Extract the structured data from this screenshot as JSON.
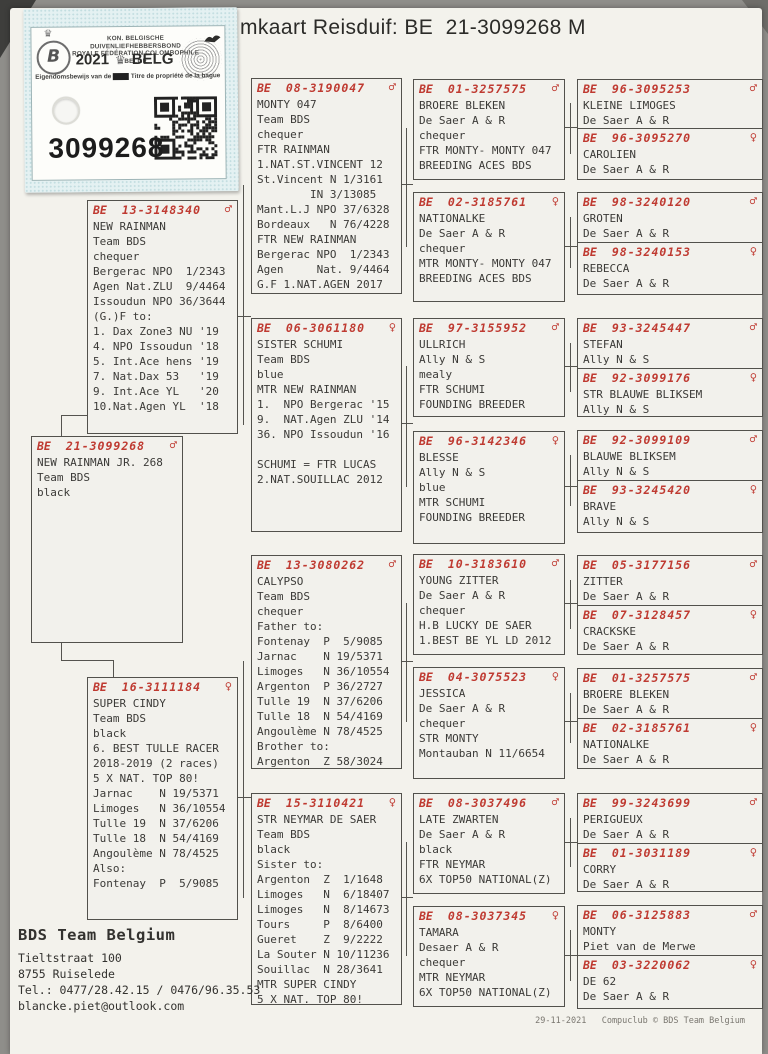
{
  "title": "mkaart Reisduif: BE  21-3099268 M",
  "sticker": {
    "federation_line1": "KON. BELGISCHE DUIVENLIEFHEBBERSBOND",
    "federation_line2": "ROYALE FÉDÉRATION COLOMBOPHILE BELGE",
    "logo_letter": "B",
    "year": "2021",
    "country": "BELG",
    "ownership_left": "Eigendomsbewijs van de",
    "ownership_struck": "ring",
    "ownership_right": "Titre de propriété de la bague",
    "ring_number": "3099268"
  },
  "colors": {
    "accent_red": "#bf3a31",
    "paper": "#f3f2ec",
    "sticker_blue": "#e4f1f2"
  },
  "pedigree": {
    "boxes": [
      {
        "ring_prefix": "BE",
        "ring": "13-3148340",
        "sex": "♂",
        "lines": [
          "NEW RAINMAN",
          "Team BDS",
          "chequer",
          "Bergerac NPO  1/2343",
          "Agen Nat.ZLU  9/4464",
          "Issoudun NPO 36/3644",
          "(G.)F to:",
          "1. Dax Zone3 NU '19",
          "4. NPO Issoudun '18",
          "5. Int.Ace hens '19",
          "7. Nat.Dax 53   '19",
          "9. Int.Ace YL   '20",
          "10.Nat.Agen YL  '18"
        ]
      },
      {
        "ring_prefix": "BE",
        "ring": "21-3099268",
        "sex": "♂",
        "lines": [
          "NEW RAINMAN JR. 268",
          "Team BDS",
          "black"
        ]
      },
      {
        "ring_prefix": "BE",
        "ring": "16-3111184",
        "sex": "♀",
        "lines": [
          "SUPER CINDY",
          "Team BDS",
          "black",
          "6. BEST TULLE RACER",
          "2018-2019 (2 races)",
          "5 X NAT. TOP 80!",
          "Jarnac    N 19/5371",
          "Limoges   N 36/10554",
          "Tulle 19  N 37/6206",
          "Tulle 18  N 54/4169",
          "Angoulème N 78/4525",
          "Also:",
          "Fontenay  P  5/9085"
        ]
      },
      {
        "ring_prefix": "BE",
        "ring": "08-3190047",
        "sex": "♂",
        "lines": [
          "MONTY 047",
          "Team BDS",
          "chequer",
          "FTR RAINMAN",
          "1.NAT.ST.VINCENT 12",
          "St.Vincent N 1/3161",
          "        IN 3/13085",
          "Mant.L.J NPO 37/6328",
          "Bordeaux   N 76/4228",
          "FTR NEW RAINMAN",
          "Bergerac NPO  1/2343",
          "Agen     Nat. 9/4464",
          "G.F 1.NAT.AGEN 2017"
        ]
      },
      {
        "ring_prefix": "BE",
        "ring": "06-3061180",
        "sex": "♀",
        "lines": [
          "SISTER SCHUMI",
          "Team BDS",
          "blue",
          "MTR NEW RAINMAN",
          "1.  NPO Bergerac '15",
          "9.  NAT.Agen ZLU '14",
          "36. NPO Issoudun '16",
          "",
          "SCHUMI = FTR LUCAS",
          "2.NAT.SOUILLAC 2012"
        ]
      },
      {
        "ring_prefix": "BE",
        "ring": "13-3080262",
        "sex": "♂",
        "lines": [
          "CALYPSO",
          "Team BDS",
          "chequer",
          "Father to:",
          "Fontenay  P  5/9085",
          "Jarnac    N 19/5371",
          "Limoges   N 36/10554",
          "Argenton  P 36/2727",
          "Tulle 19  N 37/6206",
          "Tulle 18  N 54/4169",
          "Angoulème N 78/4525",
          "Brother to:",
          "Argenton  Z 58/3024"
        ]
      },
      {
        "ring_prefix": "BE",
        "ring": "15-3110421",
        "sex": "♀",
        "lines": [
          "STR NEYMAR DE SAER",
          "Team BDS",
          "black",
          "Sister to:",
          "Argenton  Z  1/1648",
          "Limoges   N  6/18407",
          "Limoges   N  8/14673",
          "Tours     P  8/6400",
          "Gueret    Z  9/2222",
          "La Souter N 10/11236",
          "Souillac  N 28/3641",
          "MTR SUPER CINDY",
          "5 X NAT. TOP 80!"
        ]
      },
      {
        "ring_prefix": "BE",
        "ring": "01-3257575",
        "sex": "♂",
        "lines": [
          "BROERE BLEKEN",
          "De Saer A & R",
          "chequer",
          "FTR MONTY- MONTY 047",
          "BREEDING ACES BDS"
        ]
      },
      {
        "ring_prefix": "BE",
        "ring": "02-3185761",
        "sex": "♀",
        "lines": [
          "NATIONALKE",
          "De Saer A & R",
          "chequer",
          "MTR MONTY- MONTY 047",
          "BREEDING ACES BDS"
        ]
      },
      {
        "ring_prefix": "BE",
        "ring": "97-3155952",
        "sex": "♂",
        "lines": [
          "ULLRICH",
          "Ally N & S",
          "mealy",
          "FTR SCHUMI",
          "FOUNDING BREEDER"
        ]
      },
      {
        "ring_prefix": "BE",
        "ring": "96-3142346",
        "sex": "♀",
        "lines": [
          "BLESSE",
          "Ally N & S",
          "blue",
          "MTR SCHUMI",
          "FOUNDING BREEDER"
        ]
      },
      {
        "ring_prefix": "BE",
        "ring": "10-3183610",
        "sex": "♂",
        "lines": [
          "YOUNG ZITTER",
          "De Saer A & R",
          "chequer",
          "H.B LUCKY DE SAER",
          "1.BEST BE YL LD 2012"
        ]
      },
      {
        "ring_prefix": "BE",
        "ring": "04-3075523",
        "sex": "♀",
        "lines": [
          "JESSICA",
          "De Saer A & R",
          "chequer",
          "STR MONTY",
          "Montauban N 11/6654"
        ]
      },
      {
        "ring_prefix": "BE",
        "ring": "08-3037496",
        "sex": "♂",
        "lines": [
          "LATE ZWARTEN",
          "De Saer A & R",
          "black",
          "FTR NEYMAR",
          "6X TOP50 NATIONAL(Z)"
        ]
      },
      {
        "ring_prefix": "BE",
        "ring": "08-3037345",
        "sex": "♀",
        "lines": [
          "TAMARA",
          "Desaer A & R",
          "chequer",
          "MTR NEYMAR",
          "6X TOP50 NATIONAL(Z)"
        ]
      },
      {
        "ring_prefix": "BE",
        "ring": "96-3095253",
        "sex": "♂",
        "lines": [
          "KLEINE LIMOGES",
          "De Saer A & R"
        ]
      },
      {
        "ring_prefix": "BE",
        "ring": "96-3095270",
        "sex": "♀",
        "lines": [
          "CAROLIEN",
          "De Saer A & R"
        ]
      },
      {
        "ring_prefix": "BE",
        "ring": "98-3240120",
        "sex": "♂",
        "lines": [
          "GROTEN",
          "De Saer A & R"
        ]
      },
      {
        "ring_prefix": "BE",
        "ring": "98-3240153",
        "sex": "♀",
        "lines": [
          "REBECCA",
          "De Saer A & R"
        ]
      },
      {
        "ring_prefix": "BE",
        "ring": "93-3245447",
        "sex": "♂",
        "lines": [
          "STEFAN",
          "Ally N & S"
        ]
      },
      {
        "ring_prefix": "BE",
        "ring": "92-3099176",
        "sex": "♀",
        "lines": [
          "STR BLAUWE BLIKSEM",
          "Ally N & S"
        ]
      },
      {
        "ring_prefix": "BE",
        "ring": "92-3099109",
        "sex": "♂",
        "lines": [
          "BLAUWE BLIKSEM",
          "Ally N & S"
        ]
      },
      {
        "ring_prefix": "BE",
        "ring": "93-3245420",
        "sex": "♀",
        "lines": [
          "BRAVE",
          "Ally N & S"
        ]
      },
      {
        "ring_prefix": "BE",
        "ring": "05-3177156",
        "sex": "♂",
        "lines": [
          "ZITTER",
          "De Saer A & R"
        ]
      },
      {
        "ring_prefix": "BE",
        "ring": "07-3128457",
        "sex": "♀",
        "lines": [
          "CRACKSKE",
          "De Saer A & R"
        ]
      },
      {
        "ring_prefix": "BE",
        "ring": "01-3257575",
        "sex": "♂",
        "lines": [
          "BROERE BLEKEN",
          "De Saer A & R"
        ]
      },
      {
        "ring_prefix": "BE",
        "ring": "02-3185761",
        "sex": "♀",
        "lines": [
          "NATIONALKE",
          "De Saer A & R"
        ]
      },
      {
        "ring_prefix": "BE",
        "ring": "99-3243699",
        "sex": "♂",
        "lines": [
          "PERIGUEUX",
          "De Saer A & R"
        ]
      },
      {
        "ring_prefix": "BE",
        "ring": "01-3031189",
        "sex": "♀",
        "lines": [
          "CORRY",
          "De Saer A & R"
        ]
      },
      {
        "ring_prefix": "BE",
        "ring": "06-3125883",
        "sex": "♂",
        "lines": [
          "MONTY",
          "Piet van de Merwe"
        ]
      },
      {
        "ring_prefix": "BE",
        "ring": "03-3220062",
        "sex": "♀",
        "lines": [
          "DE 62",
          "De Saer A & R"
        ]
      }
    ]
  },
  "owner": {
    "name": "BDS Team Belgium",
    "lines": [
      "Tieltstraat 100",
      "8755  Ruiselede",
      "Tel.: 0477/28.42.15 / 0476/96.35.53",
      "blancke.piet@outlook.com"
    ]
  },
  "footer": {
    "date": "29-11-2021",
    "credit": "Compuclub © BDS Team Belgium"
  }
}
